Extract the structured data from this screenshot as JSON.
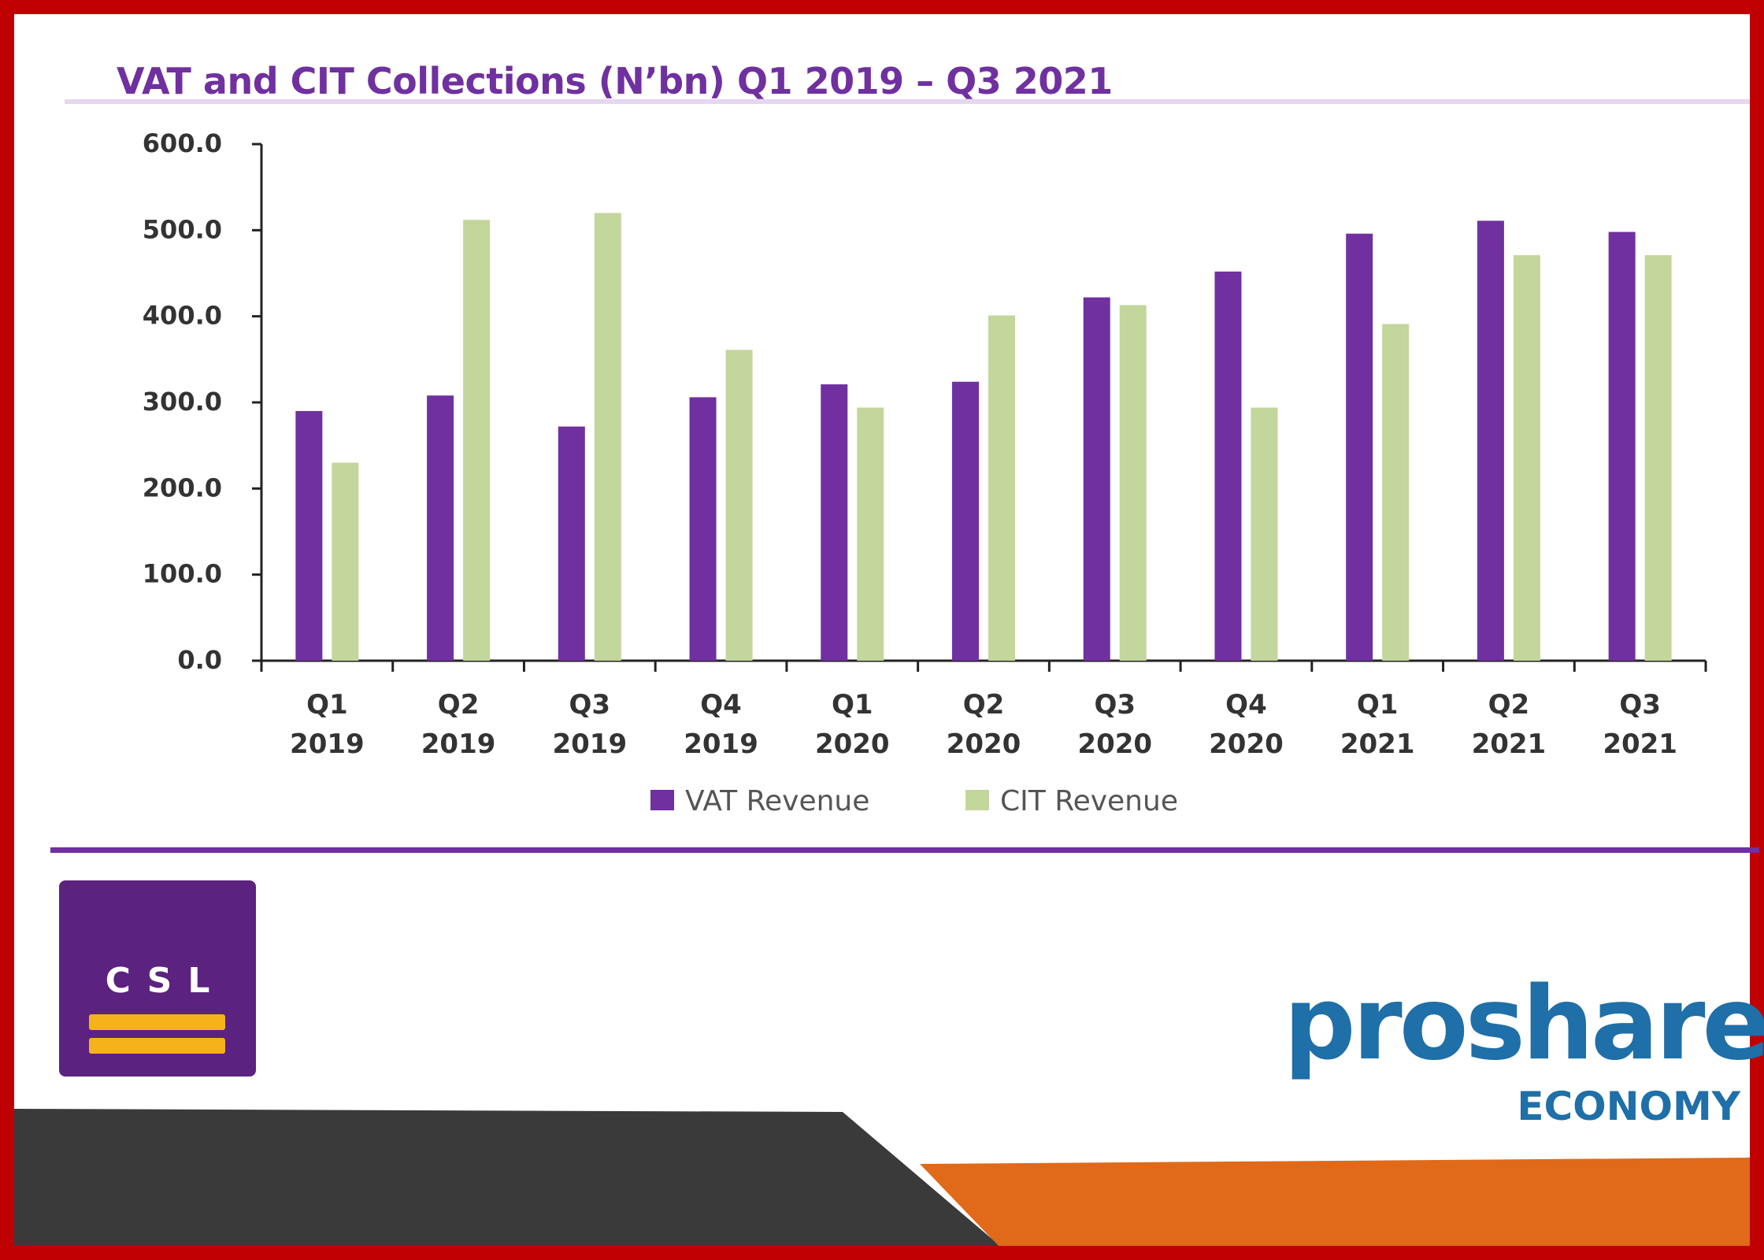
{
  "chart_data": {
    "type": "bar",
    "title": "VAT and CIT Collections (N’bn) Q1 2019 – Q3 2021",
    "categories": [
      [
        "Q1",
        "2019"
      ],
      [
        "Q2",
        "2019"
      ],
      [
        "Q3",
        "2019"
      ],
      [
        "Q4",
        "2019"
      ],
      [
        "Q1",
        "2020"
      ],
      [
        "Q2",
        "2020"
      ],
      [
        "Q3",
        "2020"
      ],
      [
        "Q4",
        "2020"
      ],
      [
        "Q1",
        "2021"
      ],
      [
        "Q2",
        "2021"
      ],
      [
        "Q3",
        "2021"
      ]
    ],
    "series": [
      {
        "name": "VAT Revenue",
        "color": "#7030a0",
        "values": [
          290.0,
          308.0,
          272.0,
          306.0,
          321.0,
          324.0,
          422.0,
          452.0,
          496.0,
          511.0,
          498.0
        ]
      },
      {
        "name": "CIT Revenue",
        "color": "#c3d69b",
        "values": [
          230.0,
          512.0,
          520.0,
          361.0,
          294.0,
          401.0,
          413.0,
          294.0,
          391.0,
          471.0,
          471.0
        ]
      }
    ],
    "yticks": [
      "0.0",
      "100.0",
      "200.0",
      "300.0",
      "400.0",
      "500.0",
      "600.0"
    ],
    "ylim": [
      0,
      600
    ],
    "grid": false,
    "legend": "bottom-center"
  },
  "logos": {
    "csl": "CSL",
    "proshare": "proshare",
    "proshare_sub": "ECONOMY"
  },
  "colors": {
    "frame": "#c00000",
    "title": "#7030a0",
    "divider": "#7030a0",
    "dark_band": "#3a3a3a",
    "orange_band": "#e06a1a",
    "proshare_blue": "#1f6fa8"
  }
}
